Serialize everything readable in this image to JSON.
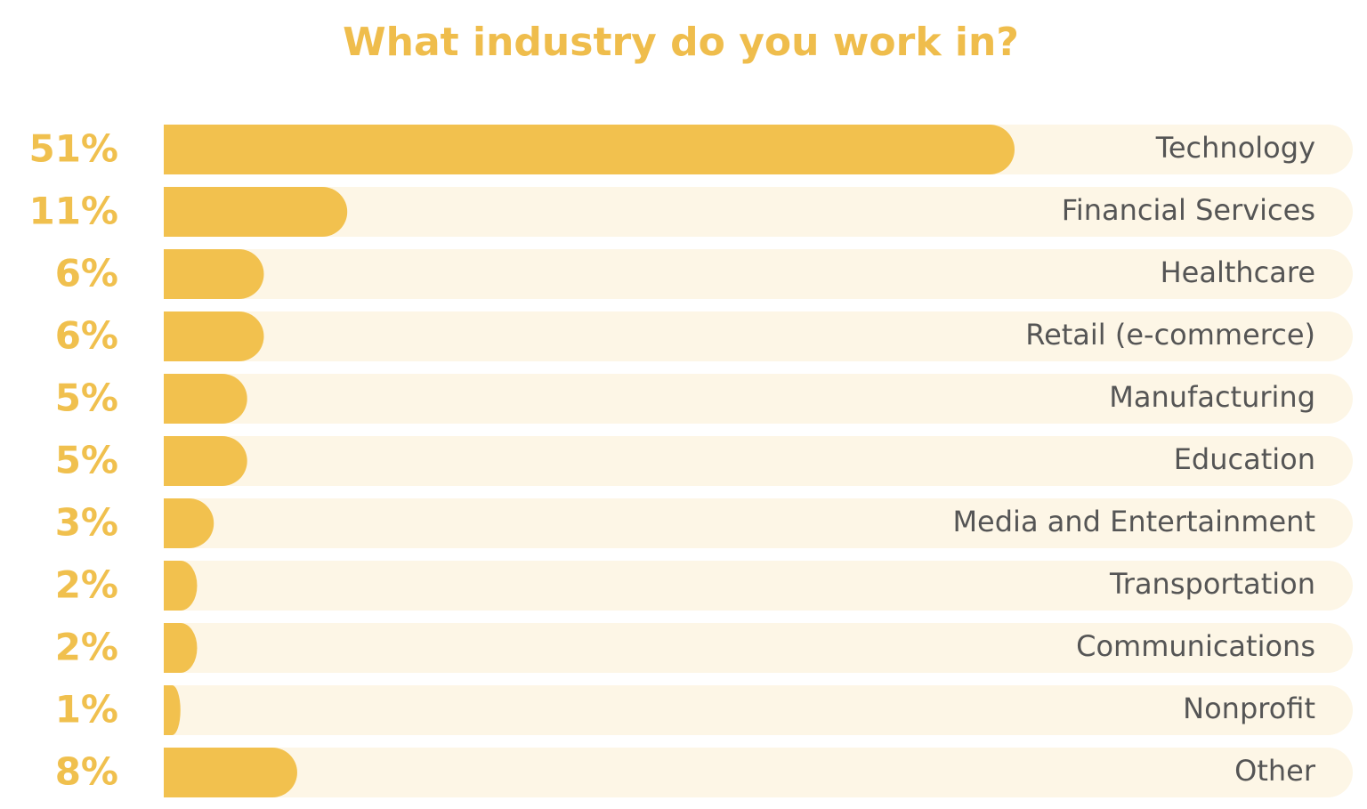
{
  "chart_data": {
    "type": "bar",
    "orientation": "horizontal",
    "title": "What industry do you work in?",
    "categories": [
      "Technology",
      "Financial Services",
      "Healthcare",
      "Retail (e-commerce)",
      "Manufacturing",
      "Education",
      "Media and Entertainment",
      "Transportation",
      "Communications",
      "Nonprofit",
      "Other"
    ],
    "values": [
      51,
      11,
      6,
      6,
      5,
      5,
      3,
      2,
      2,
      1,
      8
    ],
    "value_labels": [
      "51%",
      "11%",
      "6%",
      "6%",
      "5%",
      "5%",
      "3%",
      "2%",
      "2%",
      "1%",
      "8%"
    ],
    "color": "#f2c14e"
  }
}
